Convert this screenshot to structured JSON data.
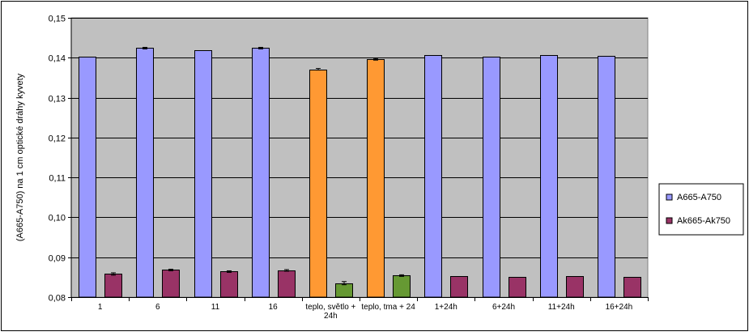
{
  "chart_data": {
    "type": "bar",
    "title": "",
    "xlabel": "",
    "ylabel": "(A665-A750) na 1 cm optické dráhy kyvety",
    "ylim": [
      0.08,
      0.15
    ],
    "yticks": [
      "0,08",
      "0,09",
      "0,10",
      "0,11",
      "0,12",
      "0,13",
      "0,14",
      "0,15"
    ],
    "yticks_values": [
      0.08,
      0.09,
      0.1,
      0.11,
      0.12,
      0.13,
      0.14,
      0.15
    ],
    "grid": true,
    "legend_position": "right",
    "plot_background": "#c0c0c0",
    "categories": [
      [
        "1"
      ],
      [
        "6"
      ],
      [
        "11"
      ],
      [
        "16"
      ],
      [
        "teplo, světlo +",
        "24h"
      ],
      [
        "teplo, tma + 24"
      ],
      [
        "1+24h"
      ],
      [
        "6+24h"
      ],
      [
        "11+24h"
      ],
      [
        "16+24h"
      ]
    ],
    "series": [
      {
        "name": "A665-A750",
        "color": "#9999ff",
        "point_colors": [
          "#9999ff",
          "#9999ff",
          "#9999ff",
          "#9999ff",
          "#ff9933",
          "#ff9933",
          "#9999ff",
          "#9999ff",
          "#9999ff",
          "#9999ff"
        ],
        "values": [
          0.1403,
          0.1424,
          0.1418,
          0.1424,
          0.1371,
          0.1396,
          0.1407,
          0.1403,
          0.1407,
          0.1405
        ],
        "errors": [
          0,
          0.0002,
          0,
          0.0002,
          0.0002,
          0.0002,
          0,
          0,
          0,
          0
        ]
      },
      {
        "name": "Ak665-Ak750",
        "color": "#993366",
        "point_colors": [
          "#993366",
          "#993366",
          "#993366",
          "#993366",
          "#669933",
          "#669933",
          "#993366",
          "#993366",
          "#993366",
          "#993366"
        ],
        "values": [
          0.0858,
          0.0868,
          0.0864,
          0.0867,
          0.0835,
          0.0854,
          0.0853,
          0.0851,
          0.0853,
          0.0851
        ],
        "errors": [
          0.0003,
          0.0002,
          0.0002,
          0.0002,
          0.0004,
          0.0002,
          0,
          0,
          0,
          0
        ]
      }
    ]
  }
}
